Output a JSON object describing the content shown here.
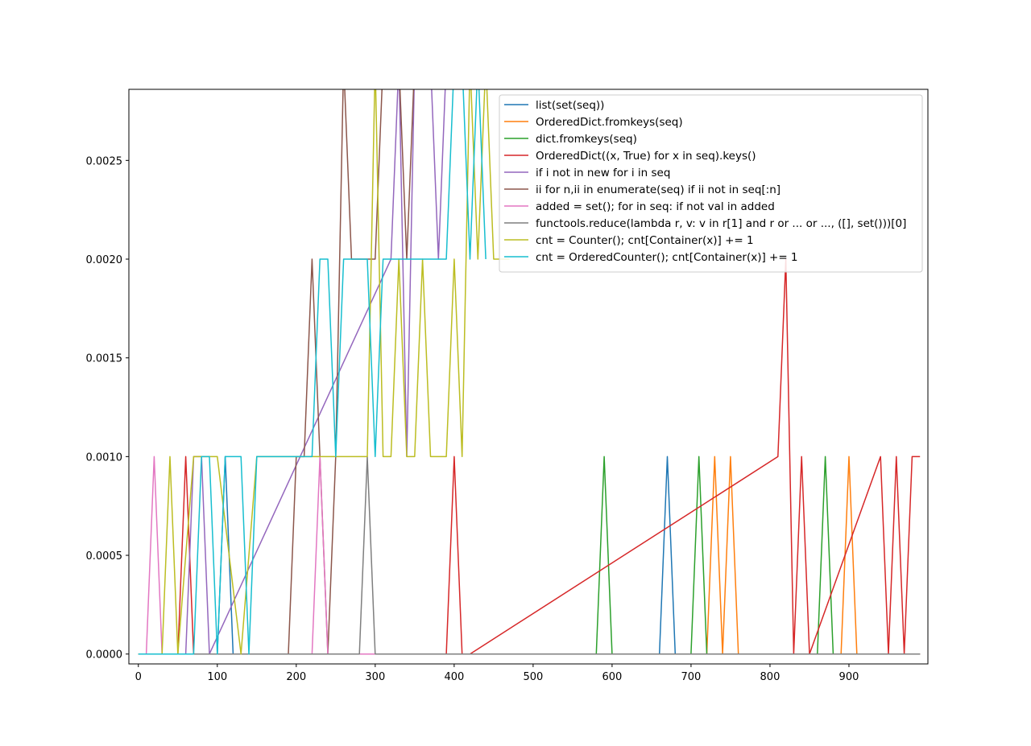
{
  "chart_data": {
    "type": "line",
    "title": "",
    "xlabel": "",
    "ylabel": "",
    "xlim": [
      -12,
      1000
    ],
    "ylim": [
      -5e-05,
      0.00286
    ],
    "x_ticks": [
      0,
      100,
      200,
      300,
      400,
      500,
      600,
      700,
      800,
      900
    ],
    "x_tick_labels": [
      "0",
      "100",
      "200",
      "300",
      "400",
      "500",
      "600",
      "700",
      "800",
      "900"
    ],
    "y_ticks": [
      0,
      0.0005,
      0.001,
      0.0015,
      0.002,
      0.0025
    ],
    "y_tick_labels": [
      "0.0000",
      "0.0005",
      "0.0010",
      "0.0015",
      "0.0020",
      "0.0025"
    ],
    "grid": false,
    "legend_position": "top-right",
    "series": [
      {
        "name": "list(set(seq))",
        "color": "#1f77b4",
        "x": [
          0,
          100,
          110,
          120,
          130,
          140,
          650,
          660,
          670,
          680,
          990
        ],
        "y": [
          0,
          0,
          0.001,
          0,
          0,
          0,
          0,
          0,
          0.001,
          0,
          0
        ]
      },
      {
        "name": "OrderedDict.fromkeys(seq)",
        "color": "#ff7f0e",
        "x": [
          0,
          720,
          730,
          740,
          750,
          760,
          770,
          780,
          890,
          900,
          910,
          990
        ],
        "y": [
          0,
          0,
          0.001,
          0,
          0.001,
          0,
          0,
          0,
          0,
          0.001,
          0,
          0
        ]
      },
      {
        "name": "dict.fromkeys(seq)",
        "color": "#2ca02c",
        "x": [
          0,
          580,
          590,
          600,
          690,
          700,
          710,
          720,
          730,
          740,
          860,
          870,
          880,
          990
        ],
        "y": [
          0,
          0,
          0.001,
          0,
          0,
          0,
          0.001,
          0,
          0,
          0,
          0,
          0.001,
          0,
          0
        ]
      },
      {
        "name": "OrderedDict((x, True) for x in seq).keys()",
        "color": "#d62728",
        "x": [
          0,
          50,
          60,
          70,
          390,
          400,
          410,
          420,
          810,
          820,
          830,
          840,
          850,
          940,
          950,
          960,
          970,
          980,
          990
        ],
        "y": [
          0,
          0,
          0.001,
          0,
          0,
          0.001,
          0,
          0,
          0.001,
          0.002,
          0,
          0.001,
          0,
          0.001,
          0,
          0.001,
          0,
          0.001,
          0.001
        ]
      },
      {
        "name": "if i not in new for i in seq",
        "color": "#9467bd",
        "x": [
          0,
          60,
          70,
          80,
          90,
          320,
          330,
          340,
          350,
          360,
          370,
          380,
          390,
          400,
          410
        ],
        "y": [
          0,
          0,
          0.001,
          0.001,
          0,
          0.002,
          0.003,
          0.001,
          0.003,
          0.003,
          0.003,
          0.002,
          0.003,
          0.003,
          0.003
        ]
      },
      {
        "name": "ii for n,ii in enumerate(seq) if ii not in seq[:n]",
        "color": "#8c564b",
        "x": [
          0,
          190,
          200,
          210,
          220,
          230,
          240,
          250,
          260,
          270,
          280,
          290,
          300,
          310,
          320,
          330,
          340,
          350
        ],
        "y": [
          0,
          0,
          0.001,
          0.001,
          0.002,
          0.001,
          0,
          0.001,
          0.003,
          0.002,
          0.002,
          0.002,
          0.002,
          0.003,
          0.003,
          0.003,
          0.002,
          0.003
        ]
      },
      {
        "name": "added = set(); for in seq: if not val in added",
        "color": "#e377c2",
        "x": [
          0,
          10,
          20,
          30,
          40,
          200,
          210,
          220,
          230,
          240,
          990
        ],
        "y": [
          0,
          0,
          0.001,
          0,
          0,
          0,
          0,
          0,
          0.001,
          0,
          0
        ]
      },
      {
        "name": "functools.reduce(lambda r, v: v in r[1] and r or ... or ..., ([], set()))[0]",
        "color": "#7f7f7f",
        "x": [
          0,
          270,
          280,
          290,
          300,
          990
        ],
        "y": [
          0,
          0,
          0,
          0.001,
          0,
          0
        ]
      },
      {
        "name": "cnt = Counter(); cnt[Container(x)] += 1",
        "color": "#bcbd22",
        "x": [
          0,
          30,
          40,
          50,
          70,
          100,
          130,
          150,
          280,
          290,
          300,
          310,
          320,
          330,
          340,
          350,
          360,
          370,
          380,
          390,
          400,
          410,
          420,
          430,
          440,
          450,
          460,
          470
        ],
        "y": [
          0,
          0,
          0.001,
          0,
          0.001,
          0.001,
          0,
          0.001,
          0.001,
          0.001,
          0.003,
          0.001,
          0.001,
          0.002,
          0.001,
          0.001,
          0.002,
          0.001,
          0.001,
          0.001,
          0.002,
          0.001,
          0.003,
          0.002,
          0.003,
          0.002,
          0.002,
          0.002
        ]
      },
      {
        "name": "cnt = OrderedCounter(); cnt[Container(x)] += 1",
        "color": "#17becf",
        "x": [
          0,
          70,
          80,
          90,
          100,
          110,
          120,
          130,
          140,
          150,
          220,
          230,
          240,
          250,
          260,
          290,
          300,
          310,
          380,
          390,
          400,
          410,
          420,
          430,
          440
        ],
        "y": [
          0,
          0,
          0.001,
          0.001,
          0,
          0.001,
          0.001,
          0.001,
          0,
          0.001,
          0.001,
          0.002,
          0.002,
          0.001,
          0.002,
          0.002,
          0.001,
          0.002,
          0.002,
          0.002,
          0.003,
          0.003,
          0.002,
          0.003,
          0.002
        ]
      }
    ]
  }
}
